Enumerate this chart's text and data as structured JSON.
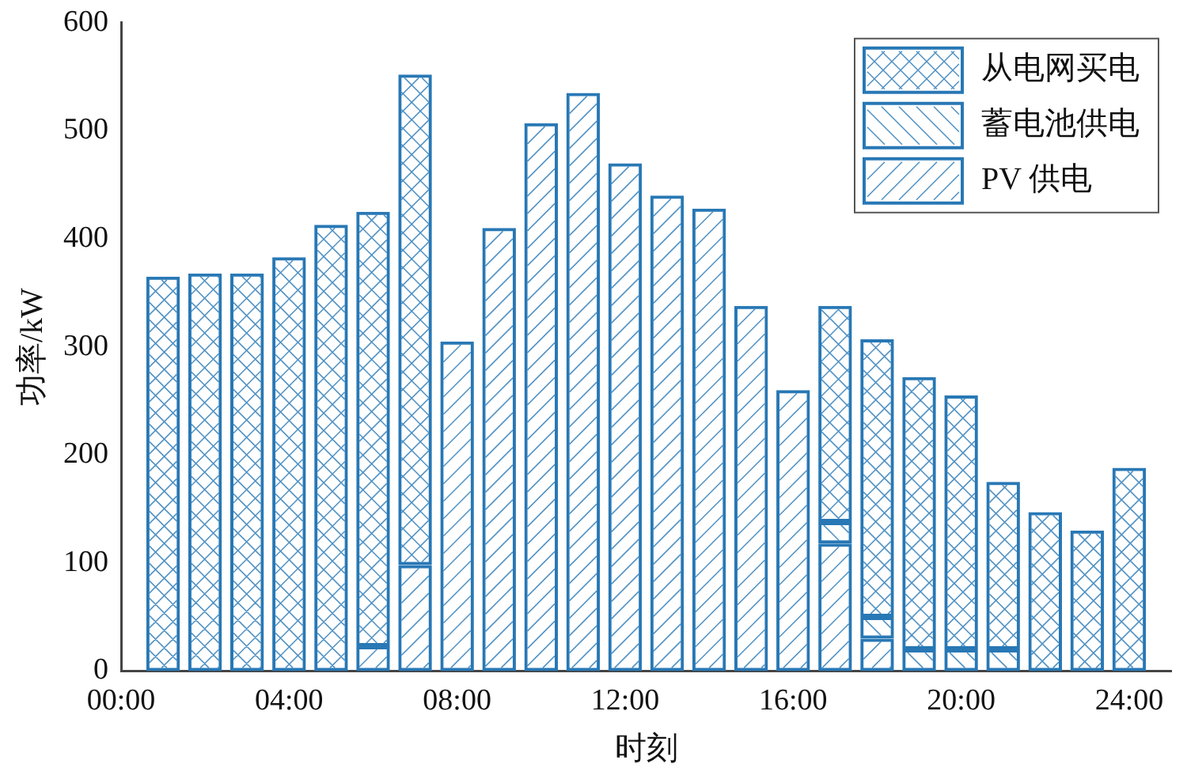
{
  "chart_data": {
    "type": "bar",
    "stacked": true,
    "xlabel": "时刻",
    "ylabel": "功率/kW",
    "x": [
      1,
      2,
      3,
      4,
      5,
      6,
      7,
      8,
      9,
      10,
      11,
      12,
      13,
      14,
      15,
      16,
      17,
      18,
      19,
      20,
      21,
      22,
      23,
      24
    ],
    "series": [
      {
        "name": "PV 供电",
        "color": "#2878b5",
        "values": [
          null,
          null,
          null,
          null,
          null,
          23,
          98,
          305,
          410,
          507,
          535,
          470,
          440,
          428,
          338,
          260,
          118,
          30,
          null,
          null,
          null,
          null,
          null,
          null
        ]
      },
      {
        "name": "蓄电池供电",
        "color": "#2878b5",
        "values": [
          null,
          null,
          null,
          null,
          null,
          null,
          null,
          null,
          null,
          null,
          null,
          null,
          null,
          null,
          null,
          null,
          20,
          20,
          20,
          20,
          20,
          null,
          null,
          null
        ]
      },
      {
        "name": "从电网买电",
        "color": "#2878b5",
        "values": [
          365,
          368,
          368,
          383,
          413,
          402,
          454,
          null,
          null,
          null,
          null,
          null,
          null,
          null,
          null,
          null,
          200,
          257,
          252,
          235,
          155,
          147,
          130,
          188
        ]
      }
    ],
    "xlim": [
      0,
      25
    ],
    "xticks": [
      {
        "value": 0,
        "label": "00:00"
      },
      {
        "value": 4,
        "label": "04:00"
      },
      {
        "value": 8,
        "label": "08:00"
      },
      {
        "value": 12,
        "label": "12:00"
      },
      {
        "value": 16,
        "label": "16:00"
      },
      {
        "value": 20,
        "label": "20:00"
      },
      {
        "value": 24,
        "label": "24:00"
      }
    ],
    "ylim": [
      0,
      600
    ],
    "yticks": [
      0,
      100,
      200,
      300,
      400,
      500,
      600
    ],
    "grid": false,
    "legend": "top right"
  }
}
